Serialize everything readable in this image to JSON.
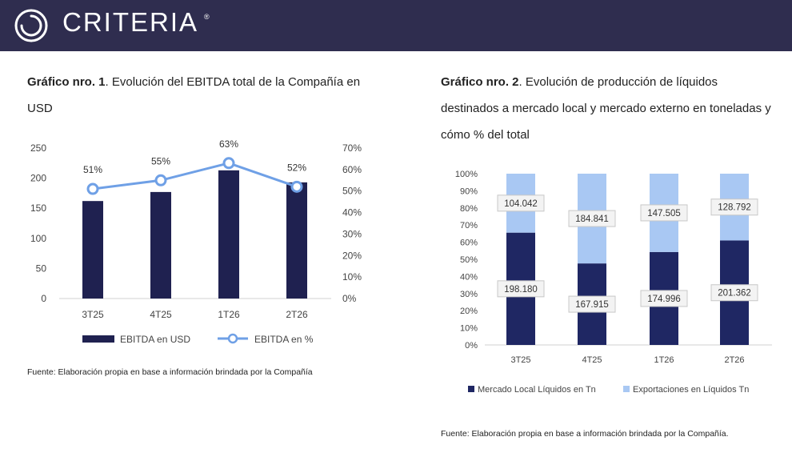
{
  "header": {
    "brand": "CRITERIA",
    "trademark": "®",
    "logo_icon": "criteria-swirl-icon",
    "background": "#2f2d4f"
  },
  "left_chart": {
    "title_prefix": "Gráfico nro. 1",
    "title_rest": ". Evolución del EBITDA total de la Compañía en USD",
    "source": "Fuente: Elaboración propia en base a información brindada por la Compañía"
  },
  "right_chart": {
    "title_prefix": "Gráfico nro. 2",
    "title_rest": ". Evolución de producción de líquidos destinados a mercado local y mercado externo en toneladas y cómo % del total",
    "source": "Fuente: Elaboración propia en base a información brindada por la Compañía."
  },
  "chart_data": [
    {
      "type": "bar",
      "combo": "bar+line (dual axis)",
      "categories": [
        "3T25",
        "4T25",
        "1T26",
        "2T26"
      ],
      "series": [
        {
          "name": "EBITDA en USD",
          "type": "bar",
          "axis": "left",
          "values": [
            162,
            177,
            213,
            193
          ],
          "color": "#1f2150"
        },
        {
          "name": "EBITDA en %",
          "type": "line",
          "axis": "right",
          "values": [
            51,
            55,
            63,
            52
          ],
          "labels": [
            "51%",
            "55%",
            "63%",
            "52%"
          ],
          "color": "#6fa0e6"
        }
      ],
      "ylim": [
        0,
        250
      ],
      "yticks": [
        0,
        50,
        100,
        150,
        200,
        250
      ],
      "y2lim": [
        0,
        70
      ],
      "y2ticks": [
        "0%",
        "10%",
        "20%",
        "30%",
        "40%",
        "50%",
        "60%",
        "70%"
      ],
      "grid": false,
      "legend": "bottom"
    },
    {
      "type": "bar",
      "stacked": "100%",
      "categories": [
        "3T25",
        "4T25",
        "1T26",
        "2T26"
      ],
      "series": [
        {
          "name": "Mercado Local Líquidos en Tn",
          "values": [
            198180,
            167915,
            174996,
            201362
          ],
          "labels": [
            "198.180",
            "167.915",
            "174.996",
            "201.362"
          ],
          "color": "#1f2763"
        },
        {
          "name": "Exportaciones en Líquidos Tn",
          "values": [
            104042,
            184841,
            147505,
            128792
          ],
          "labels": [
            "104.042",
            "184.841",
            "147.505",
            "128.792"
          ],
          "color": "#a9c8f3"
        }
      ],
      "yticks": [
        "0%",
        "10%",
        "20%",
        "30%",
        "40%",
        "50%",
        "60%",
        "70%",
        "80%",
        "90%",
        "100%"
      ],
      "ylim": [
        0,
        100
      ],
      "grid": false,
      "legend": "bottom"
    }
  ]
}
